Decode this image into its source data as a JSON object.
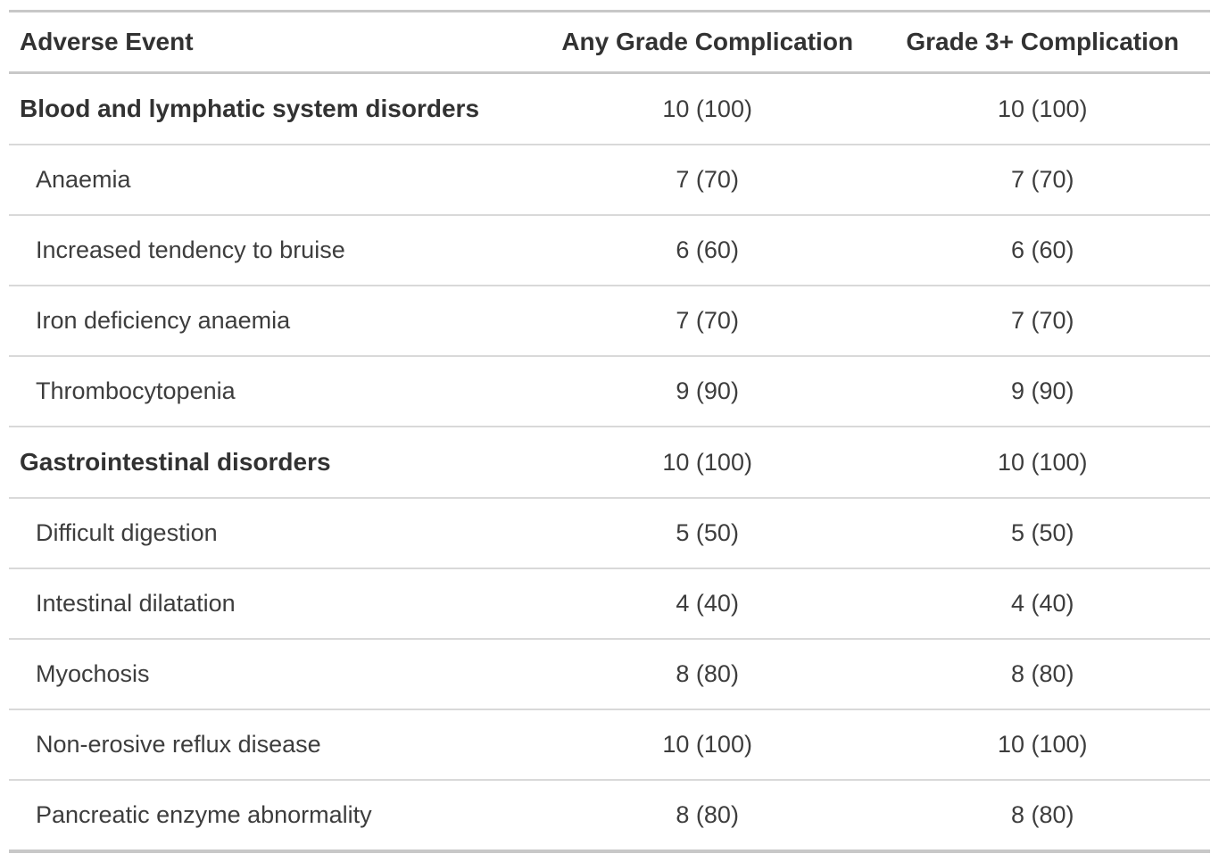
{
  "table": {
    "columns": [
      {
        "label": "Adverse Event"
      },
      {
        "label": "Any Grade Complication"
      },
      {
        "label": "Grade 3+ Complication"
      }
    ],
    "rows": [
      {
        "label": "Blood and lymphatic system disorders",
        "any_grade": "10 (100)",
        "grade3plus": "10 (100)"
      },
      {
        "label": "Anaemia",
        "any_grade": "7 (70)",
        "grade3plus": "7 (70)"
      },
      {
        "label": "Increased tendency to bruise",
        "any_grade": "6 (60)",
        "grade3plus": "6 (60)"
      },
      {
        "label": "Iron deficiency anaemia",
        "any_grade": "7 (70)",
        "grade3plus": "7 (70)"
      },
      {
        "label": "Thrombocytopenia",
        "any_grade": "9 (90)",
        "grade3plus": "9 (90)"
      },
      {
        "label": "Gastrointestinal disorders",
        "any_grade": "10 (100)",
        "grade3plus": "10 (100)"
      },
      {
        "label": "Difficult digestion",
        "any_grade": "5 (50)",
        "grade3plus": "5 (50)"
      },
      {
        "label": "Intestinal dilatation",
        "any_grade": "4 (40)",
        "grade3plus": "4 (40)"
      },
      {
        "label": "Myochosis",
        "any_grade": "8 (80)",
        "grade3plus": "8 (80)"
      },
      {
        "label": "Non-erosive reflux disease",
        "any_grade": "10 (100)",
        "grade3plus": "10 (100)"
      },
      {
        "label": "Pancreatic enzyme abnormality",
        "any_grade": "8 (80)",
        "grade3plus": "8 (80)"
      }
    ],
    "colors": {
      "text_bold": "#323232",
      "text_regular": "#3d3d3d",
      "border_thick": "#c8c8c8",
      "border_thin": "#d9d9d9"
    }
  }
}
